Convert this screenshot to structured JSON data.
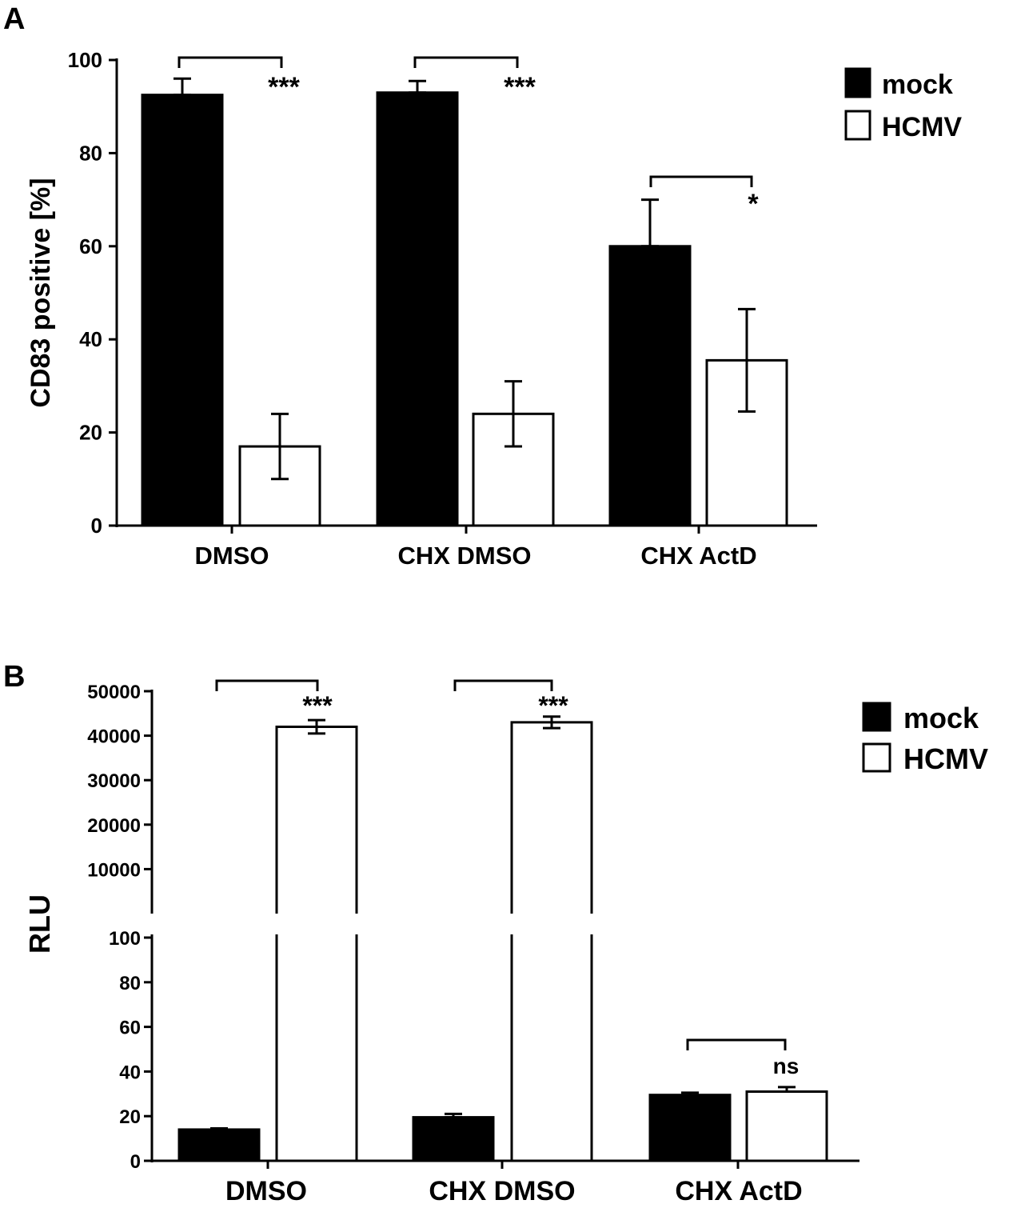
{
  "figure": {
    "panels": [
      {
        "letter": "A"
      },
      {
        "letter": "B"
      }
    ]
  },
  "chart_data": [
    {
      "panel": "A",
      "type": "bar",
      "ylabel": "CD83 positive [%]",
      "xlabel": "",
      "ylim": [
        0,
        100
      ],
      "yticks": [
        "0",
        "20",
        "40",
        "60",
        "80",
        "100"
      ],
      "categories": [
        "DMSO",
        "CHX DMSO",
        "CHX ActD"
      ],
      "series": [
        {
          "name": "mock",
          "fill": "#000000",
          "values": [
            92.5,
            93,
            60
          ],
          "errors": [
            3.5,
            2.5,
            10
          ]
        },
        {
          "name": "HCMV",
          "fill": "#ffffff",
          "values": [
            17,
            24,
            35.5
          ],
          "errors": [
            7,
            7,
            11
          ]
        }
      ],
      "significance": [
        "***",
        "***",
        "*"
      ],
      "legend": {
        "position": "top-right"
      }
    },
    {
      "panel": "B",
      "type": "bar",
      "ylabel": "RLU",
      "xlabel": "",
      "broken_axis": true,
      "ylim_lower": [
        0,
        100
      ],
      "ylim_upper": [
        0,
        50000
      ],
      "yticks_lower": [
        "0",
        "20",
        "40",
        "60",
        "80",
        "100"
      ],
      "yticks_upper": [
        "10000",
        "20000",
        "30000",
        "40000",
        "50000"
      ],
      "categories": [
        "DMSO",
        "CHX DMSO",
        "CHX ActD"
      ],
      "series": [
        {
          "name": "mock",
          "fill": "#000000",
          "values": [
            14,
            19.5,
            29.5
          ],
          "errors": [
            0.5,
            1.5,
            1
          ]
        },
        {
          "name": "HCMV",
          "fill": "#ffffff",
          "values": [
            42000,
            43000,
            31
          ],
          "errors": [
            1500,
            1300,
            2
          ]
        }
      ],
      "significance": [
        "***",
        "***",
        "ns"
      ],
      "legend": {
        "position": "top-right"
      }
    }
  ]
}
